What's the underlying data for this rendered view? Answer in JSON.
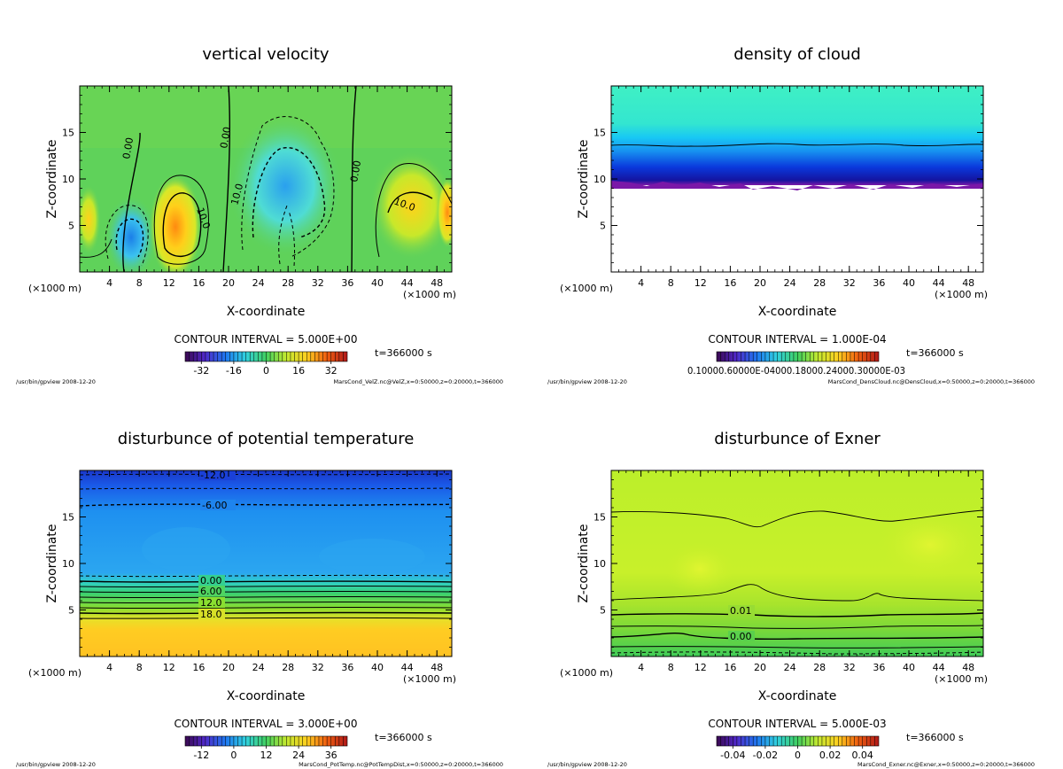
{
  "chart_data": [
    {
      "type": "contour",
      "title": "vertical velocity",
      "xlabel": "X-coordinate",
      "ylabel": "Z-coordinate",
      "x_unit": "(×1000 m)",
      "xlim": [
        0,
        50
      ],
      "ylim": [
        0,
        20
      ],
      "xticks": [
        "4",
        "8",
        "12",
        "16",
        "20",
        "24",
        "28",
        "32",
        "36",
        "40",
        "44",
        "48"
      ],
      "yticks": [
        "5",
        "10",
        "15"
      ],
      "contour_interval": "CONTOUR INTERVAL = 5.000E+00",
      "time_label": "t=366000 s",
      "colorbar_ticks": [
        "-32",
        "-16",
        "0",
        "16",
        "32"
      ],
      "colorbar_range": [
        -40,
        40
      ],
      "contour_labels": [
        "0.00",
        "0.00",
        "0.00",
        "10.0",
        "10.0",
        "10.0"
      ],
      "footer_left": "/usr/bin/gpview  2008-12-20",
      "footer_right": "MarsCond_VelZ.nc@VelZ,x=0:50000,z=0:20000,t=366000",
      "palette": [
        "#5fd25a",
        "#ffcf1a",
        "#1b8fe8",
        "#f06a10"
      ]
    },
    {
      "type": "contour",
      "title": "density of cloud",
      "xlabel": "X-coordinate",
      "ylabel": "Z-coordinate",
      "x_unit": "(×1000 m)",
      "xlim": [
        0,
        50
      ],
      "ylim": [
        0,
        20
      ],
      "xticks": [
        "4",
        "8",
        "12",
        "16",
        "20",
        "24",
        "28",
        "32",
        "36",
        "40",
        "44",
        "48"
      ],
      "yticks": [
        "5",
        "10",
        "15"
      ],
      "contour_interval": "CONTOUR INTERVAL = 1.000E-04",
      "time_label": "t=366000 s",
      "colorbar_ticks_raw": "0.10000.60000E-04000.18000.24000.30000E-03",
      "footer_left": "/usr/bin/gpview  2008-12-20",
      "footer_right": "MarsCond_DensCloud.nc@DensCloud,x=0:50000,z=0:20000,t=366000",
      "palette": [
        "#33e8c6",
        "#1ab4f0",
        "#0a30d8",
        "#7a1aa8"
      ]
    },
    {
      "type": "contour",
      "title": "disturbunce of potential temperature",
      "xlabel": "X-coordinate",
      "ylabel": "Z-coordinate",
      "x_unit": "(×1000 m)",
      "xlim": [
        0,
        50
      ],
      "ylim": [
        0,
        20
      ],
      "xticks": [
        "4",
        "8",
        "12",
        "16",
        "20",
        "24",
        "28",
        "32",
        "36",
        "40",
        "44",
        "48"
      ],
      "yticks": [
        "5",
        "10",
        "15"
      ],
      "contour_interval": "CONTOUR INTERVAL = 3.000E+00",
      "time_label": "t=366000 s",
      "colorbar_ticks": [
        "-12",
        "0",
        "12",
        "24",
        "36"
      ],
      "colorbar_range": [
        -18,
        42
      ],
      "contour_labels": [
        "-12.0",
        "-6.00",
        "0.00",
        "6.00",
        "12.0",
        "18.0"
      ],
      "footer_left": "/usr/bin/gpview  2008-12-20",
      "footer_right": "MarsCond_PotTemp.nc@PotTempDist,x=0:50000,z=0:20000,t=366000",
      "palette": [
        "#1a3fe0",
        "#2aa0f0",
        "#3ad080",
        "#ffcc22"
      ]
    },
    {
      "type": "contour",
      "title": "disturbunce of Exner",
      "xlabel": "X-coordinate",
      "ylabel": "Z-coordinate",
      "x_unit": "(×1000 m)",
      "xlim": [
        0,
        50
      ],
      "ylim": [
        0,
        20
      ],
      "xticks": [
        "4",
        "8",
        "12",
        "16",
        "20",
        "24",
        "28",
        "32",
        "36",
        "40",
        "44",
        "48"
      ],
      "yticks": [
        "5",
        "10",
        "15"
      ],
      "contour_interval": "CONTOUR INTERVAL = 5.000E-03",
      "time_label": "t=366000 s",
      "colorbar_ticks": [
        "-0.04",
        "-0.02",
        "0",
        "0.02",
        "0.04"
      ],
      "colorbar_range": [
        -0.05,
        0.05
      ],
      "contour_labels": [
        "0.01",
        "0.00"
      ],
      "footer_left": "/usr/bin/gpview  2008-12-20",
      "footer_right": "MarsCond_Exner.nc@Exner,x=0:50000,z=0:20000,t=366000",
      "palette": [
        "#c8f028",
        "#9ae02c",
        "#3ccf50"
      ]
    }
  ]
}
